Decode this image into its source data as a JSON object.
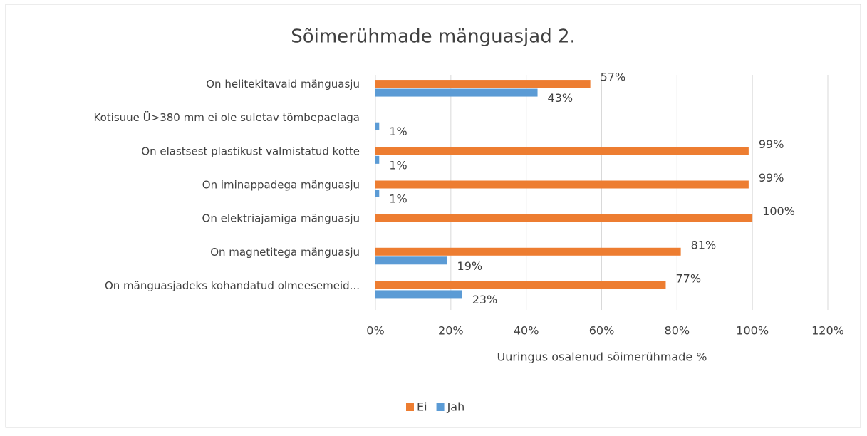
{
  "chart_data": {
    "type": "bar",
    "orientation": "horizontal",
    "title": "Sõimerühmade mänguasjad 2.",
    "x_label": "Uuringus osalenud sõimerühmade %",
    "categories": [
      "On helitekitavaid mänguasju",
      "Kotisuue Ü>380 mm ei ole suletav tõmbepaelaga",
      "On elastsest plastikust valmistatud kotte",
      "On iminappadega mänguasju",
      "On elektriajamiga mänguasju",
      "On magnetitega mänguasju",
      "On mänguasjadeks kohandatud olmeesemeid..."
    ],
    "series": [
      {
        "name": "Ei",
        "color": "#ed7d31",
        "values": [
          57,
          null,
          99,
          99,
          100,
          81,
          77
        ],
        "value_labels": [
          "57%",
          null,
          "99%",
          "99%",
          "100%",
          "81%",
          "77%"
        ]
      },
      {
        "name": "Jah",
        "color": "#5b9bd5",
        "values": [
          43,
          1,
          1,
          1,
          null,
          19,
          23
        ],
        "value_labels": [
          "43%",
          "1%",
          "1%",
          "1%",
          null,
          "19%",
          "23%"
        ]
      }
    ],
    "xlim": [
      0,
      120
    ],
    "xticks": [
      {
        "value": 0,
        "label": "0%"
      },
      {
        "value": 20,
        "label": "20%"
      },
      {
        "value": 40,
        "label": "40%"
      },
      {
        "value": 60,
        "label": "60%"
      },
      {
        "value": 80,
        "label": "80%"
      },
      {
        "value": 100,
        "label": "100%"
      },
      {
        "value": 120,
        "label": "120%"
      }
    ],
    "grid": true,
    "legend": "bottom"
  }
}
